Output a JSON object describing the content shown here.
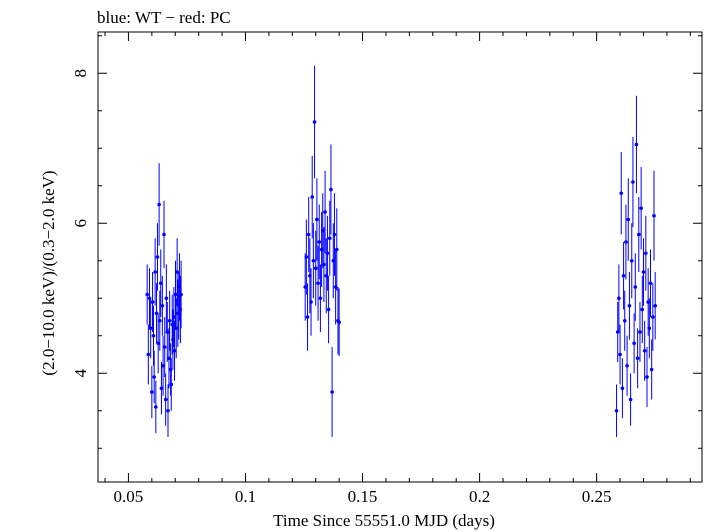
{
  "chart_data": {
    "type": "scatter",
    "title": "blue: WT − red: PC",
    "xlabel": "Time Since 55551.0 MJD (days)",
    "ylabel": "(2.0−10.0 keV)/(0.3−2.0 keV)",
    "xlim": [
      0.037,
      0.295
    ],
    "ylim": [
      2.55,
      8.55
    ],
    "x_ticks": [
      0.05,
      0.1,
      0.15,
      0.2,
      0.25
    ],
    "x_tick_labels": [
      "0.05",
      "0.1",
      "0.15",
      "0.2",
      "0.25"
    ],
    "y_ticks": [
      4,
      6,
      8
    ],
    "y_tick_labels": [
      "4",
      "6",
      "8"
    ],
    "grid": false,
    "colors": {
      "WT": "#0000ff",
      "PC": "#ff0000"
    },
    "series": [
      {
        "name": "WT",
        "points": [
          [
            0.058,
            5.05,
            0.4
          ],
          [
            0.0585,
            4.25,
            0.4
          ],
          [
            0.059,
            5.0,
            0.4
          ],
          [
            0.0595,
            4.6,
            0.4
          ],
          [
            0.06,
            3.75,
            0.35
          ],
          [
            0.0603,
            4.95,
            0.4
          ],
          [
            0.0607,
            4.5,
            0.4
          ],
          [
            0.061,
            3.95,
            0.35
          ],
          [
            0.0614,
            5.35,
            0.45
          ],
          [
            0.0617,
            3.55,
            0.35
          ],
          [
            0.062,
            4.8,
            0.4
          ],
          [
            0.0624,
            5.55,
            0.45
          ],
          [
            0.0627,
            4.4,
            0.4
          ],
          [
            0.0631,
            6.25,
            0.55
          ],
          [
            0.0634,
            4.7,
            0.4
          ],
          [
            0.0638,
            5.2,
            0.45
          ],
          [
            0.0641,
            3.8,
            0.35
          ],
          [
            0.0645,
            4.9,
            0.4
          ],
          [
            0.0648,
            4.1,
            0.4
          ],
          [
            0.0652,
            5.85,
            0.45
          ],
          [
            0.0655,
            4.35,
            0.4
          ],
          [
            0.0659,
            3.65,
            0.35
          ],
          [
            0.0662,
            5.0,
            0.45
          ],
          [
            0.0666,
            4.55,
            0.4
          ],
          [
            0.0669,
            3.5,
            0.35
          ],
          [
            0.0673,
            4.2,
            0.4
          ],
          [
            0.0676,
            4.7,
            0.4
          ],
          [
            0.068,
            4.05,
            0.35
          ],
          [
            0.0683,
            3.85,
            0.35
          ],
          [
            0.0687,
            4.65,
            0.4
          ],
          [
            0.069,
            4.45,
            0.4
          ],
          [
            0.0694,
            4.75,
            0.4
          ],
          [
            0.0697,
            4.3,
            0.4
          ],
          [
            0.0701,
            5.05,
            0.45
          ],
          [
            0.0704,
            4.6,
            0.4
          ],
          [
            0.0708,
            5.35,
            0.45
          ],
          [
            0.0711,
            4.8,
            0.45
          ],
          [
            0.0715,
            4.9,
            0.45
          ],
          [
            0.0718,
            5.15,
            0.45
          ],
          [
            0.0722,
            4.85,
            0.45
          ],
          [
            0.0725,
            5.05,
            0.45
          ],
          [
            0.1255,
            5.15,
            0.45
          ],
          [
            0.126,
            5.55,
            0.5
          ],
          [
            0.1265,
            4.75,
            0.45
          ],
          [
            0.127,
            5.85,
            0.5
          ],
          [
            0.1275,
            5.3,
            0.5
          ],
          [
            0.128,
            4.95,
            0.45
          ],
          [
            0.1285,
            6.35,
            0.55
          ],
          [
            0.129,
            5.5,
            0.5
          ],
          [
            0.1295,
            7.35,
            0.75
          ],
          [
            0.13,
            5.4,
            0.5
          ],
          [
            0.1305,
            6.05,
            0.55
          ],
          [
            0.131,
            5.2,
            0.5
          ],
          [
            0.1315,
            5.75,
            0.5
          ],
          [
            0.132,
            5.0,
            0.45
          ],
          [
            0.1325,
            5.65,
            0.5
          ],
          [
            0.133,
            5.9,
            0.5
          ],
          [
            0.1335,
            5.45,
            0.5
          ],
          [
            0.134,
            6.15,
            0.55
          ],
          [
            0.1345,
            5.3,
            0.5
          ],
          [
            0.135,
            5.6,
            0.5
          ],
          [
            0.1355,
            4.85,
            0.45
          ],
          [
            0.136,
            5.8,
            0.5
          ],
          [
            0.1365,
            6.45,
            0.6
          ],
          [
            0.137,
            3.75,
            0.6
          ],
          [
            0.1375,
            5.5,
            0.5
          ],
          [
            0.138,
            5.85,
            0.55
          ],
          [
            0.1385,
            5.15,
            0.5
          ],
          [
            0.139,
            5.65,
            0.55
          ],
          [
            0.1395,
            4.7,
            0.45
          ],
          [
            0.14,
            4.68,
            0.45
          ],
          [
            0.2585,
            3.5,
            0.35
          ],
          [
            0.259,
            4.55,
            0.4
          ],
          [
            0.2595,
            5.0,
            0.45
          ],
          [
            0.26,
            4.25,
            0.4
          ],
          [
            0.2605,
            6.4,
            0.55
          ],
          [
            0.261,
            3.8,
            0.4
          ],
          [
            0.2615,
            5.3,
            0.45
          ],
          [
            0.262,
            4.7,
            0.4
          ],
          [
            0.2625,
            5.75,
            0.5
          ],
          [
            0.263,
            4.1,
            0.4
          ],
          [
            0.2635,
            6.05,
            0.55
          ],
          [
            0.264,
            4.9,
            0.45
          ],
          [
            0.2645,
            3.65,
            0.35
          ],
          [
            0.265,
            5.5,
            0.5
          ],
          [
            0.2655,
            6.55,
            0.6
          ],
          [
            0.266,
            4.4,
            0.4
          ],
          [
            0.2665,
            5.15,
            0.45
          ],
          [
            0.267,
            7.05,
            0.65
          ],
          [
            0.2675,
            4.2,
            0.4
          ],
          [
            0.268,
            5.85,
            0.5
          ],
          [
            0.2685,
            4.55,
            0.4
          ],
          [
            0.269,
            6.2,
            0.55
          ],
          [
            0.2695,
            4.85,
            0.45
          ],
          [
            0.27,
            5.35,
            0.45
          ],
          [
            0.2705,
            4.3,
            0.4
          ],
          [
            0.271,
            5.6,
            0.5
          ],
          [
            0.2715,
            3.95,
            0.4
          ],
          [
            0.272,
            4.95,
            0.45
          ],
          [
            0.2725,
            4.6,
            0.4
          ],
          [
            0.273,
            5.2,
            0.45
          ],
          [
            0.2735,
            4.05,
            0.4
          ],
          [
            0.274,
            4.75,
            0.45
          ],
          [
            0.2745,
            6.1,
            0.6
          ],
          [
            0.275,
            4.9,
            0.45
          ]
        ]
      }
    ]
  }
}
